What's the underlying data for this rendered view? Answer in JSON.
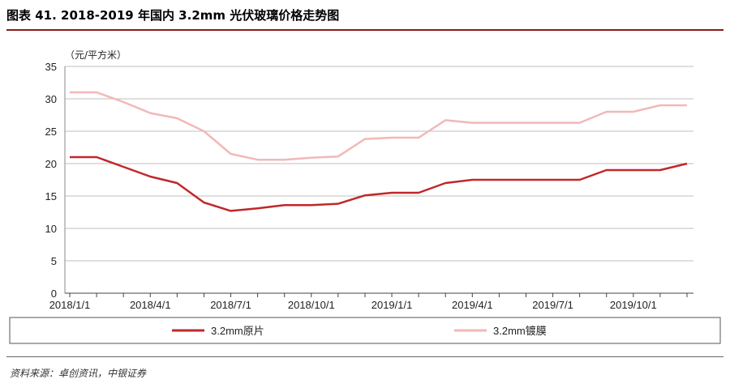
{
  "header": {
    "title": "图表 41. 2018-2019 年国内 3.2mm 光伏玻璃价格走势图"
  },
  "footer": {
    "source": "资料来源：卓创资讯，中银证券"
  },
  "chart_data": {
    "type": "line",
    "ylabel": "（元/平方米）",
    "ylim": [
      0,
      35
    ],
    "yticks": [
      0,
      5,
      10,
      15,
      20,
      25,
      30,
      35
    ],
    "x_tick_labels": [
      "2018/1/1",
      "2018/4/1",
      "2018/7/1",
      "2018/10/1",
      "2019/1/1",
      "2019/4/1",
      "2019/7/1",
      "2019/10/1"
    ],
    "x": [
      "2018/1/1",
      "2018/2/1",
      "2018/3/1",
      "2018/4/1",
      "2018/5/1",
      "2018/6/1",
      "2018/7/1",
      "2018/8/1",
      "2018/9/1",
      "2018/10/1",
      "2018/11/1",
      "2018/12/1",
      "2019/1/1",
      "2019/2/1",
      "2019/3/1",
      "2019/4/1",
      "2019/5/1",
      "2019/6/1",
      "2019/7/1",
      "2019/8/1",
      "2019/9/1",
      "2019/10/1",
      "2019/11/1",
      "2019/12/1"
    ],
    "series": [
      {
        "name": "3.2mm原片",
        "color": "#c0282a",
        "values": [
          21,
          21,
          19.5,
          18,
          17,
          14,
          12.7,
          13.1,
          13.6,
          13.6,
          13.8,
          15.1,
          15.5,
          15.5,
          17,
          17.5,
          17.5,
          17.5,
          17.5,
          17.5,
          19,
          19,
          19,
          20
        ]
      },
      {
        "name": "3.2mm镀膜",
        "color": "#f2b8b8",
        "values": [
          31,
          31,
          29.5,
          27.8,
          27,
          25,
          21.5,
          20.6,
          20.6,
          20.9,
          21.1,
          23.8,
          24,
          24,
          26.7,
          26.3,
          26.3,
          26.3,
          26.3,
          26.3,
          28,
          28,
          29,
          29
        ]
      }
    ],
    "grid": true,
    "legend": "bottom"
  }
}
